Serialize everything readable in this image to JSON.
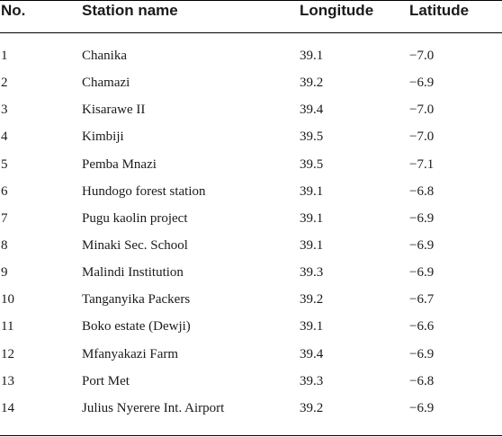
{
  "table": {
    "headers": [
      "No.",
      "Station name",
      "Longitude",
      "Latitude"
    ],
    "rows": [
      [
        "1",
        "Chanika",
        "39.1",
        "−7.0"
      ],
      [
        "2",
        "Chamazi",
        "39.2",
        "−6.9"
      ],
      [
        "3",
        "Kisarawe II",
        "39.4",
        "−7.0"
      ],
      [
        "4",
        "Kimbiji",
        "39.5",
        "−7.0"
      ],
      [
        "5",
        "Pemba Mnazi",
        "39.5",
        "−7.1"
      ],
      [
        "6",
        "Hundogo forest station",
        "39.1",
        "−6.8"
      ],
      [
        "7",
        "Pugu kaolin project",
        "39.1",
        "−6.9"
      ],
      [
        "8",
        "Minaki Sec. School",
        "39.1",
        "−6.9"
      ],
      [
        "9",
        "Malindi Institution",
        "39.3",
        "−6.9"
      ],
      [
        "10",
        "Tanganyika Packers",
        "39.2",
        "−6.7"
      ],
      [
        "11",
        "Boko estate (Dewji)",
        "39.1",
        "−6.6"
      ],
      [
        "12",
        "Mfanyakazi Farm",
        "39.4",
        "−6.9"
      ],
      [
        "13",
        "Port Met",
        "39.3",
        "−6.8"
      ],
      [
        "14",
        "Julius Nyerere Int. Airport",
        "39.2",
        "−6.9"
      ]
    ]
  }
}
